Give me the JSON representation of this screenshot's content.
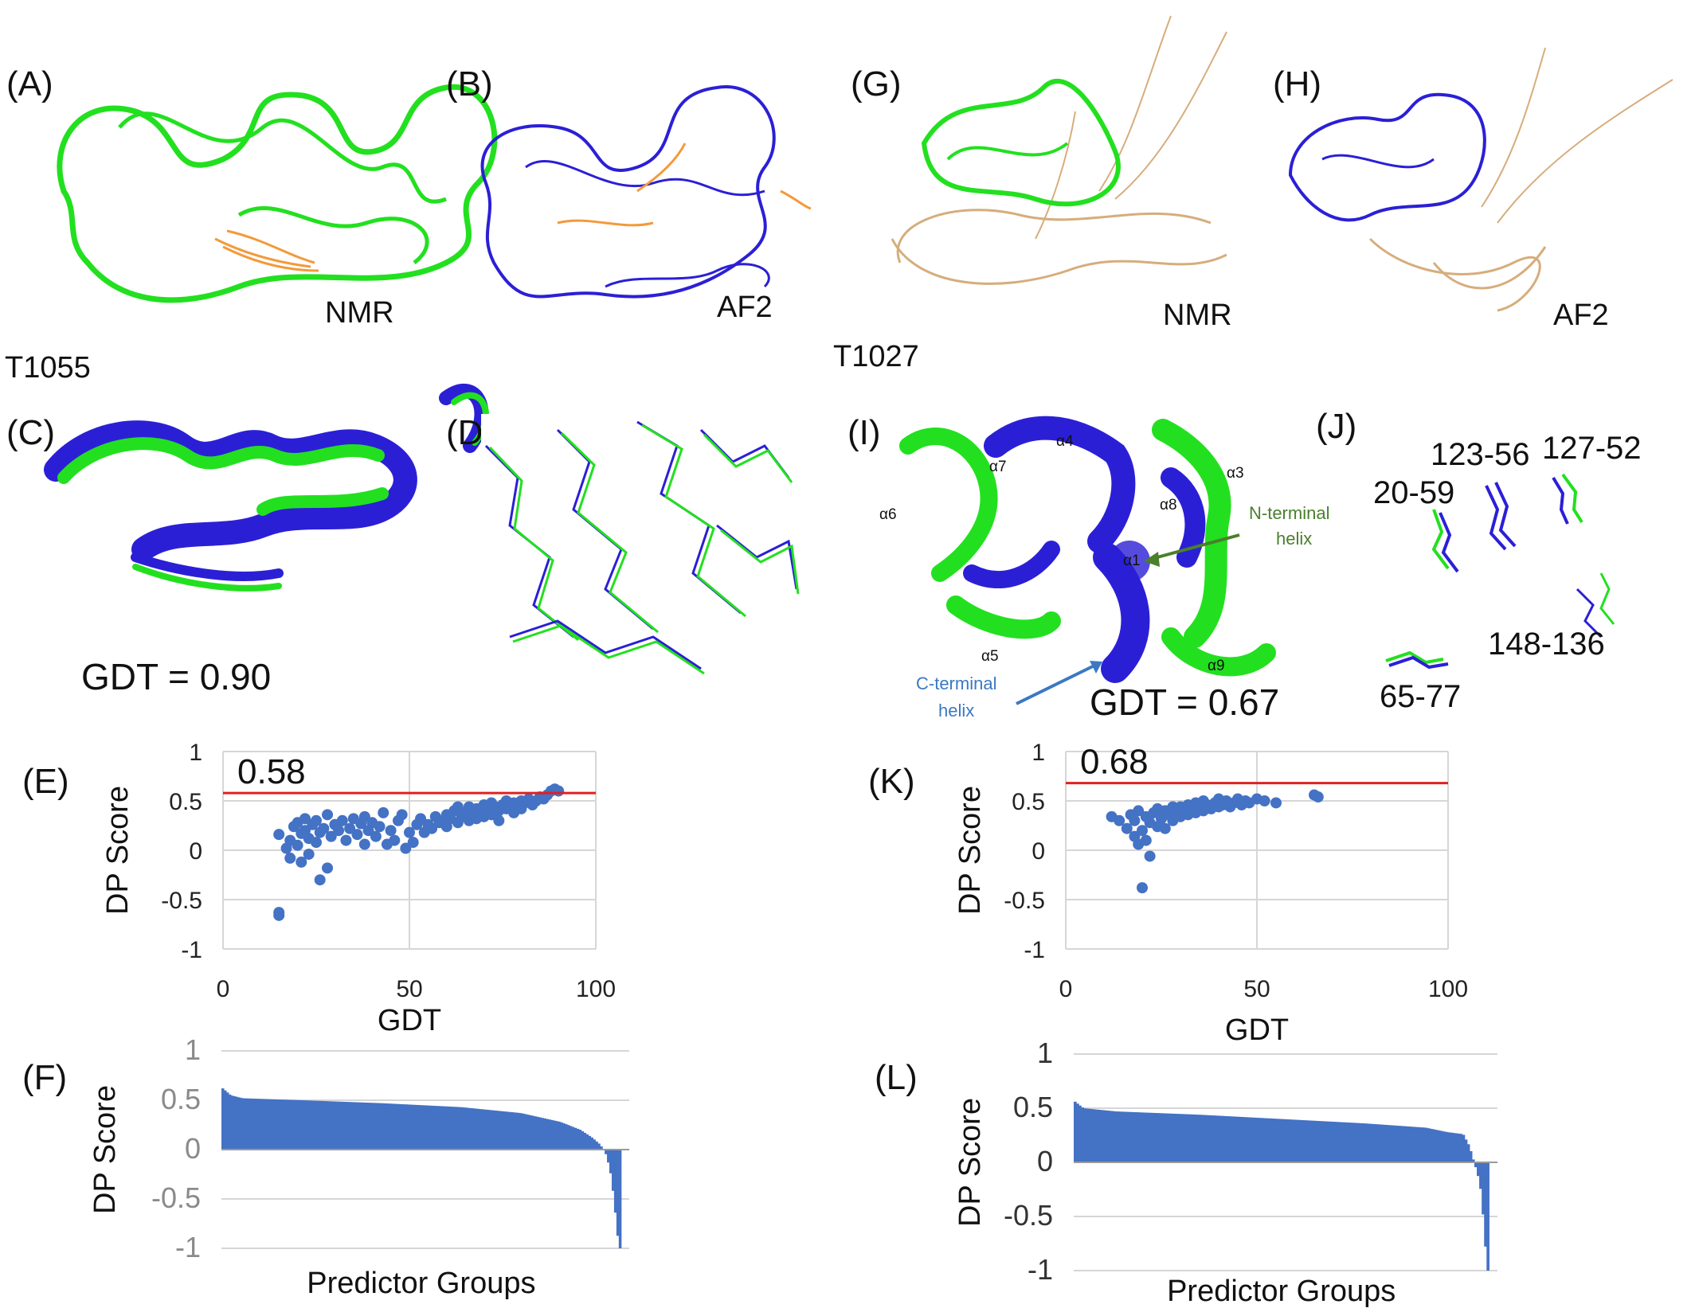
{
  "panels": {
    "A": {
      "label": "(A)",
      "method": "NMR"
    },
    "B": {
      "label": "(B)",
      "method": "AF2"
    },
    "G": {
      "label": "(G)",
      "method": "NMR"
    },
    "H": {
      "label": "(H)",
      "method": "AF2"
    },
    "C": {
      "label": "(C)",
      "gdt_text": "GDT = 0.90"
    },
    "D": {
      "label": "(D)"
    },
    "I": {
      "label": "(I)",
      "gdt_text": "GDT = 0.67",
      "helices": [
        "α1",
        "α3",
        "α4",
        "α5",
        "α6",
        "α7",
        "α8",
        "α9"
      ],
      "n_terminal_line1": "N-terminal",
      "n_terminal_line2": "helix",
      "c_terminal_line1": "C-terminal",
      "c_terminal_line2": "helix"
    },
    "J": {
      "label": "(J)",
      "residue_pairs": [
        "123-56",
        "127-52",
        "20-59",
        "148-136",
        "65-77"
      ]
    },
    "E": {
      "label": "(E)"
    },
    "F": {
      "label": "(F)"
    },
    "K": {
      "label": "(K)"
    },
    "L": {
      "label": "(L)"
    }
  },
  "targets": {
    "left": "T1055",
    "right": "T1027"
  },
  "colors": {
    "nmr_green": "#22e01f",
    "af2_blue": "#2b1fd6",
    "flex_orange": "#f4993a",
    "flex_tan": "#d6ad7c",
    "point_blue": "#4472c4",
    "bar_blue": "#4472c4",
    "threshold_red": "#e02020"
  },
  "chart_data": [
    {
      "panel": "E",
      "type": "scatter",
      "target": "T1055",
      "xlabel": "GDT",
      "ylabel": "DP Score",
      "xlim": [
        0,
        100
      ],
      "ylim": [
        -1,
        1
      ],
      "xticks": [
        "0",
        "50",
        "100"
      ],
      "yticks": [
        "1",
        "0.5",
        "0",
        "-0.5",
        "-1"
      ],
      "threshold": 0.58,
      "threshold_label": "0.58",
      "points": [
        [
          15,
          0.16
        ],
        [
          15,
          -0.63
        ],
        [
          15,
          -0.66
        ],
        [
          17,
          0.02
        ],
        [
          18,
          0.1
        ],
        [
          18,
          -0.08
        ],
        [
          19,
          0.24
        ],
        [
          20,
          0.28
        ],
        [
          20,
          0.05
        ],
        [
          21,
          0.17
        ],
        [
          21,
          -0.12
        ],
        [
          22,
          0.32
        ],
        [
          22,
          0.2
        ],
        [
          23,
          0.12
        ],
        [
          23,
          -0.04
        ],
        [
          24,
          0.26
        ],
        [
          25,
          0.3
        ],
        [
          25,
          0.08
        ],
        [
          26,
          -0.3
        ],
        [
          26,
          0.18
        ],
        [
          27,
          0.22
        ],
        [
          28,
          0.36
        ],
        [
          28,
          -0.18
        ],
        [
          29,
          0.14
        ],
        [
          30,
          0.26
        ],
        [
          31,
          0.2
        ],
        [
          32,
          0.3
        ],
        [
          33,
          0.1
        ],
        [
          34,
          0.22
        ],
        [
          35,
          0.32
        ],
        [
          36,
          0.16
        ],
        [
          37,
          0.27
        ],
        [
          38,
          0.34
        ],
        [
          38,
          0.06
        ],
        [
          39,
          0.2
        ],
        [
          40,
          0.28
        ],
        [
          41,
          0.14
        ],
        [
          42,
          0.24
        ],
        [
          43,
          0.38
        ],
        [
          44,
          0.06
        ],
        [
          45,
          0.2
        ],
        [
          46,
          0.1
        ],
        [
          47,
          0.3
        ],
        [
          48,
          0.36
        ],
        [
          49,
          0.02
        ],
        [
          50,
          0.18
        ],
        [
          51,
          0.08
        ],
        [
          52,
          0.26
        ],
        [
          53,
          0.32
        ],
        [
          54,
          0.18
        ],
        [
          55,
          0.26
        ],
        [
          56,
          0.22
        ],
        [
          57,
          0.34
        ],
        [
          58,
          0.28
        ],
        [
          59,
          0.3
        ],
        [
          60,
          0.36
        ],
        [
          60,
          0.24
        ],
        [
          61,
          0.32
        ],
        [
          62,
          0.4
        ],
        [
          63,
          0.28
        ],
        [
          63,
          0.44
        ],
        [
          64,
          0.34
        ],
        [
          65,
          0.38
        ],
        [
          66,
          0.3
        ],
        [
          66,
          0.44
        ],
        [
          67,
          0.36
        ],
        [
          68,
          0.42
        ],
        [
          68,
          0.32
        ],
        [
          69,
          0.4
        ],
        [
          70,
          0.34
        ],
        [
          70,
          0.46
        ],
        [
          71,
          0.42
        ],
        [
          72,
          0.36
        ],
        [
          72,
          0.48
        ],
        [
          73,
          0.44
        ],
        [
          74,
          0.4
        ],
        [
          74,
          0.3
        ],
        [
          75,
          0.46
        ],
        [
          76,
          0.42
        ],
        [
          76,
          0.5
        ],
        [
          77,
          0.44
        ],
        [
          78,
          0.48
        ],
        [
          78,
          0.38
        ],
        [
          79,
          0.46
        ],
        [
          80,
          0.5
        ],
        [
          80,
          0.42
        ],
        [
          81,
          0.48
        ],
        [
          82,
          0.52
        ],
        [
          83,
          0.46
        ],
        [
          84,
          0.5
        ],
        [
          85,
          0.54
        ],
        [
          86,
          0.52
        ],
        [
          87,
          0.56
        ],
        [
          88,
          0.6
        ],
        [
          89,
          0.62
        ],
        [
          90,
          0.6
        ]
      ]
    },
    {
      "panel": "K",
      "type": "scatter",
      "target": "T1027",
      "xlabel": "GDT",
      "ylabel": "DP Score",
      "xlim": [
        0,
        100
      ],
      "ylim": [
        -1,
        1
      ],
      "xticks": [
        "0",
        "50",
        "100"
      ],
      "yticks": [
        "1",
        "0.5",
        "0",
        "-0.5",
        "-1"
      ],
      "threshold": 0.68,
      "threshold_label": "0.68",
      "points": [
        [
          12,
          0.34
        ],
        [
          14,
          0.3
        ],
        [
          16,
          0.22
        ],
        [
          17,
          0.36
        ],
        [
          18,
          0.14
        ],
        [
          18,
          0.3
        ],
        [
          19,
          0.06
        ],
        [
          19,
          0.4
        ],
        [
          20,
          -0.38
        ],
        [
          20,
          0.2
        ],
        [
          21,
          0.34
        ],
        [
          21,
          0.1
        ],
        [
          22,
          -0.06
        ],
        [
          22,
          0.28
        ],
        [
          23,
          0.38
        ],
        [
          24,
          0.24
        ],
        [
          24,
          0.42
        ],
        [
          25,
          0.32
        ],
        [
          26,
          0.4
        ],
        [
          26,
          0.22
        ],
        [
          27,
          0.36
        ],
        [
          28,
          0.44
        ],
        [
          28,
          0.3
        ],
        [
          29,
          0.38
        ],
        [
          30,
          0.34
        ],
        [
          30,
          0.44
        ],
        [
          31,
          0.4
        ],
        [
          32,
          0.36
        ],
        [
          32,
          0.46
        ],
        [
          33,
          0.42
        ],
        [
          34,
          0.38
        ],
        [
          34,
          0.48
        ],
        [
          35,
          0.44
        ],
        [
          36,
          0.4
        ],
        [
          36,
          0.5
        ],
        [
          37,
          0.46
        ],
        [
          38,
          0.42
        ],
        [
          39,
          0.48
        ],
        [
          40,
          0.44
        ],
        [
          40,
          0.52
        ],
        [
          41,
          0.46
        ],
        [
          42,
          0.5
        ],
        [
          43,
          0.44
        ],
        [
          44,
          0.48
        ],
        [
          45,
          0.52
        ],
        [
          46,
          0.46
        ],
        [
          47,
          0.5
        ],
        [
          48,
          0.48
        ],
        [
          50,
          0.52
        ],
        [
          52,
          0.5
        ],
        [
          55,
          0.48
        ],
        [
          65,
          0.56
        ],
        [
          66,
          0.54
        ]
      ]
    },
    {
      "panel": "F",
      "type": "bar",
      "target": "T1055",
      "xlabel": "Predictor Groups",
      "ylabel": "DP Score",
      "ylim": [
        -1,
        1
      ],
      "yticks": [
        "1",
        "0.5",
        "0",
        "-0.5",
        "-1"
      ],
      "profile": [
        [
          0,
          0.62
        ],
        [
          0.02,
          0.55
        ],
        [
          0.05,
          0.52
        ],
        [
          0.2,
          0.5
        ],
        [
          0.4,
          0.47
        ],
        [
          0.6,
          0.43
        ],
        [
          0.75,
          0.37
        ],
        [
          0.85,
          0.28
        ],
        [
          0.9,
          0.2
        ],
        [
          0.93,
          0.12
        ],
        [
          0.95,
          0.05
        ],
        [
          0.965,
          -0.05
        ],
        [
          0.975,
          -0.2
        ],
        [
          0.985,
          -0.5
        ],
        [
          0.993,
          -0.85
        ],
        [
          1,
          -1.0
        ]
      ]
    },
    {
      "panel": "L",
      "type": "bar",
      "target": "T1027",
      "xlabel": "Predictor Groups",
      "ylabel": "DP Score",
      "ylim": [
        -1,
        1
      ],
      "yticks": [
        "1",
        "0.5",
        "0",
        "-0.5",
        "-1"
      ],
      "profile": [
        [
          0,
          0.56
        ],
        [
          0.02,
          0.5
        ],
        [
          0.1,
          0.47
        ],
        [
          0.3,
          0.44
        ],
        [
          0.5,
          0.4
        ],
        [
          0.7,
          0.36
        ],
        [
          0.85,
          0.32
        ],
        [
          0.9,
          0.28
        ],
        [
          0.94,
          0.26
        ],
        [
          0.955,
          0.15
        ],
        [
          0.965,
          0.02
        ],
        [
          0.975,
          -0.1
        ],
        [
          0.985,
          -0.3
        ],
        [
          0.992,
          -0.7
        ],
        [
          1,
          -1.0
        ]
      ]
    }
  ]
}
